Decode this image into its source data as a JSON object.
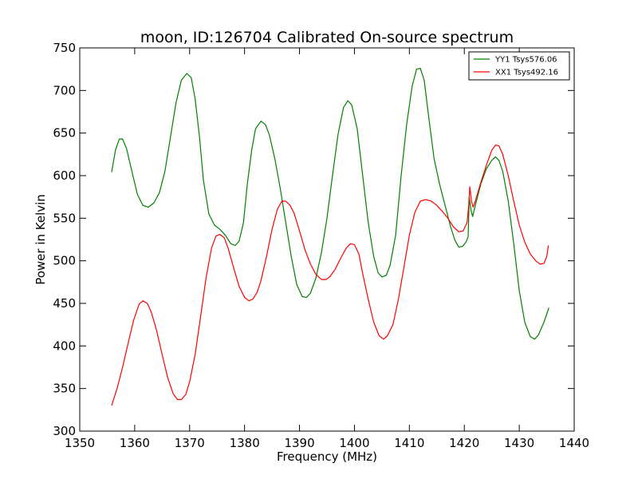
{
  "chart_data": {
    "type": "line",
    "title": "moon, ID:126704 Calibrated On-source spectrum",
    "xlabel": "Frequency (MHz)",
    "ylabel": "Power in Kelvin",
    "xlim": [
      1350,
      1440
    ],
    "ylim": [
      300,
      750
    ],
    "x_ticks": [
      1350,
      1360,
      1370,
      1380,
      1390,
      1400,
      1410,
      1420,
      1430,
      1440
    ],
    "y_ticks": [
      300,
      350,
      400,
      450,
      500,
      550,
      600,
      650,
      700,
      750
    ],
    "grid": false,
    "legend_position": "top-right",
    "series": [
      {
        "name": "YY1 Tsys576.06",
        "color": "#008000",
        "points": [
          [
            1355.8,
            604
          ],
          [
            1356.5,
            630
          ],
          [
            1357.2,
            643
          ],
          [
            1357.8,
            643
          ],
          [
            1358.5,
            632
          ],
          [
            1359.5,
            605
          ],
          [
            1360.5,
            578
          ],
          [
            1361.5,
            565
          ],
          [
            1362.5,
            563
          ],
          [
            1363.5,
            568
          ],
          [
            1364.5,
            580
          ],
          [
            1365.5,
            605
          ],
          [
            1366.5,
            645
          ],
          [
            1367.5,
            685
          ],
          [
            1368.5,
            712
          ],
          [
            1369.5,
            720
          ],
          [
            1370.3,
            715
          ],
          [
            1371.0,
            690
          ],
          [
            1371.8,
            645
          ],
          [
            1372.5,
            595
          ],
          [
            1373.5,
            555
          ],
          [
            1374.5,
            542
          ],
          [
            1375.5,
            537
          ],
          [
            1376.5,
            530
          ],
          [
            1377.5,
            520
          ],
          [
            1378.3,
            518
          ],
          [
            1379.0,
            523
          ],
          [
            1379.8,
            545
          ],
          [
            1380.5,
            590
          ],
          [
            1381.3,
            630
          ],
          [
            1382.0,
            655
          ],
          [
            1383.0,
            664
          ],
          [
            1383.8,
            660
          ],
          [
            1384.5,
            648
          ],
          [
            1385.5,
            620
          ],
          [
            1386.5,
            585
          ],
          [
            1387.5,
            545
          ],
          [
            1388.5,
            505
          ],
          [
            1389.5,
            472
          ],
          [
            1390.5,
            458
          ],
          [
            1391.3,
            457
          ],
          [
            1392.0,
            462
          ],
          [
            1393.0,
            480
          ],
          [
            1394.0,
            510
          ],
          [
            1395.0,
            550
          ],
          [
            1396.0,
            600
          ],
          [
            1397.0,
            648
          ],
          [
            1398.0,
            680
          ],
          [
            1398.8,
            688
          ],
          [
            1399.5,
            683
          ],
          [
            1400.5,
            655
          ],
          [
            1401.5,
            600
          ],
          [
            1402.5,
            545
          ],
          [
            1403.5,
            505
          ],
          [
            1404.3,
            486
          ],
          [
            1405.0,
            481
          ],
          [
            1405.8,
            483
          ],
          [
            1406.5,
            495
          ],
          [
            1407.5,
            530
          ],
          [
            1408.5,
            600
          ],
          [
            1409.5,
            660
          ],
          [
            1410.5,
            705
          ],
          [
            1411.3,
            725
          ],
          [
            1412.0,
            726
          ],
          [
            1412.7,
            712
          ],
          [
            1413.5,
            670
          ],
          [
            1414.5,
            620
          ],
          [
            1415.5,
            590
          ],
          [
            1416.5,
            565
          ],
          [
            1417.5,
            540
          ],
          [
            1418.3,
            524
          ],
          [
            1419.0,
            516
          ],
          [
            1419.7,
            517
          ],
          [
            1420.3,
            522
          ],
          [
            1420.7,
            528
          ],
          [
            1420.9,
            575
          ],
          [
            1421.2,
            560
          ],
          [
            1421.5,
            552
          ],
          [
            1422.0,
            565
          ],
          [
            1423.0,
            590
          ],
          [
            1424.0,
            608
          ],
          [
            1425.0,
            618
          ],
          [
            1425.7,
            622
          ],
          [
            1426.3,
            618
          ],
          [
            1427.0,
            605
          ],
          [
            1428.0,
            570
          ],
          [
            1429.0,
            520
          ],
          [
            1430.0,
            465
          ],
          [
            1431.0,
            428
          ],
          [
            1432.0,
            411
          ],
          [
            1432.8,
            408
          ],
          [
            1433.5,
            413
          ],
          [
            1434.5,
            428
          ],
          [
            1435.4,
            445
          ]
        ]
      },
      {
        "name": "XX1 Tsys492.16",
        "color": "#ff0000",
        "points": [
          [
            1355.8,
            330
          ],
          [
            1356.8,
            350
          ],
          [
            1357.8,
            375
          ],
          [
            1358.8,
            403
          ],
          [
            1359.8,
            430
          ],
          [
            1360.8,
            449
          ],
          [
            1361.5,
            453
          ],
          [
            1362.3,
            450
          ],
          [
            1363.0,
            440
          ],
          [
            1364.0,
            418
          ],
          [
            1365.0,
            390
          ],
          [
            1366.0,
            363
          ],
          [
            1367.0,
            344
          ],
          [
            1367.8,
            337
          ],
          [
            1368.5,
            337
          ],
          [
            1369.3,
            343
          ],
          [
            1370.0,
            358
          ],
          [
            1371.0,
            390
          ],
          [
            1372.0,
            435
          ],
          [
            1373.0,
            480
          ],
          [
            1374.0,
            515
          ],
          [
            1374.8,
            529
          ],
          [
            1375.5,
            531
          ],
          [
            1376.3,
            527
          ],
          [
            1377.0,
            515
          ],
          [
            1378.0,
            492
          ],
          [
            1379.0,
            470
          ],
          [
            1380.0,
            457
          ],
          [
            1380.8,
            453
          ],
          [
            1381.5,
            455
          ],
          [
            1382.3,
            463
          ],
          [
            1383.0,
            477
          ],
          [
            1384.0,
            505
          ],
          [
            1385.0,
            537
          ],
          [
            1386.0,
            561
          ],
          [
            1386.8,
            570
          ],
          [
            1387.5,
            570
          ],
          [
            1388.3,
            565
          ],
          [
            1389.0,
            556
          ],
          [
            1390.0,
            535
          ],
          [
            1391.0,
            513
          ],
          [
            1392.0,
            496
          ],
          [
            1393.0,
            484
          ],
          [
            1394.0,
            478
          ],
          [
            1394.8,
            478
          ],
          [
            1395.5,
            481
          ],
          [
            1396.5,
            490
          ],
          [
            1397.5,
            503
          ],
          [
            1398.5,
            515
          ],
          [
            1399.3,
            520
          ],
          [
            1400.0,
            519
          ],
          [
            1400.8,
            508
          ],
          [
            1401.5,
            485
          ],
          [
            1402.5,
            455
          ],
          [
            1403.5,
            428
          ],
          [
            1404.5,
            412
          ],
          [
            1405.3,
            408
          ],
          [
            1406.0,
            412
          ],
          [
            1407.0,
            425
          ],
          [
            1408.0,
            455
          ],
          [
            1409.0,
            492
          ],
          [
            1410.0,
            530
          ],
          [
            1411.0,
            557
          ],
          [
            1412.0,
            570
          ],
          [
            1413.0,
            572
          ],
          [
            1414.0,
            570
          ],
          [
            1415.0,
            565
          ],
          [
            1416.0,
            558
          ],
          [
            1417.0,
            550
          ],
          [
            1418.0,
            540
          ],
          [
            1419.0,
            534
          ],
          [
            1419.8,
            535
          ],
          [
            1420.5,
            545
          ],
          [
            1420.8,
            565
          ],
          [
            1421.0,
            587
          ],
          [
            1421.3,
            570
          ],
          [
            1421.6,
            563
          ],
          [
            1422.0,
            570
          ],
          [
            1423.0,
            592
          ],
          [
            1424.0,
            612
          ],
          [
            1425.0,
            630
          ],
          [
            1425.7,
            636
          ],
          [
            1426.3,
            635
          ],
          [
            1427.0,
            625
          ],
          [
            1428.0,
            600
          ],
          [
            1429.0,
            570
          ],
          [
            1430.0,
            542
          ],
          [
            1431.0,
            522
          ],
          [
            1432.0,
            508
          ],
          [
            1433.0,
            500
          ],
          [
            1433.8,
            496
          ],
          [
            1434.5,
            497
          ],
          [
            1435.0,
            505
          ],
          [
            1435.3,
            518
          ]
        ]
      }
    ]
  }
}
